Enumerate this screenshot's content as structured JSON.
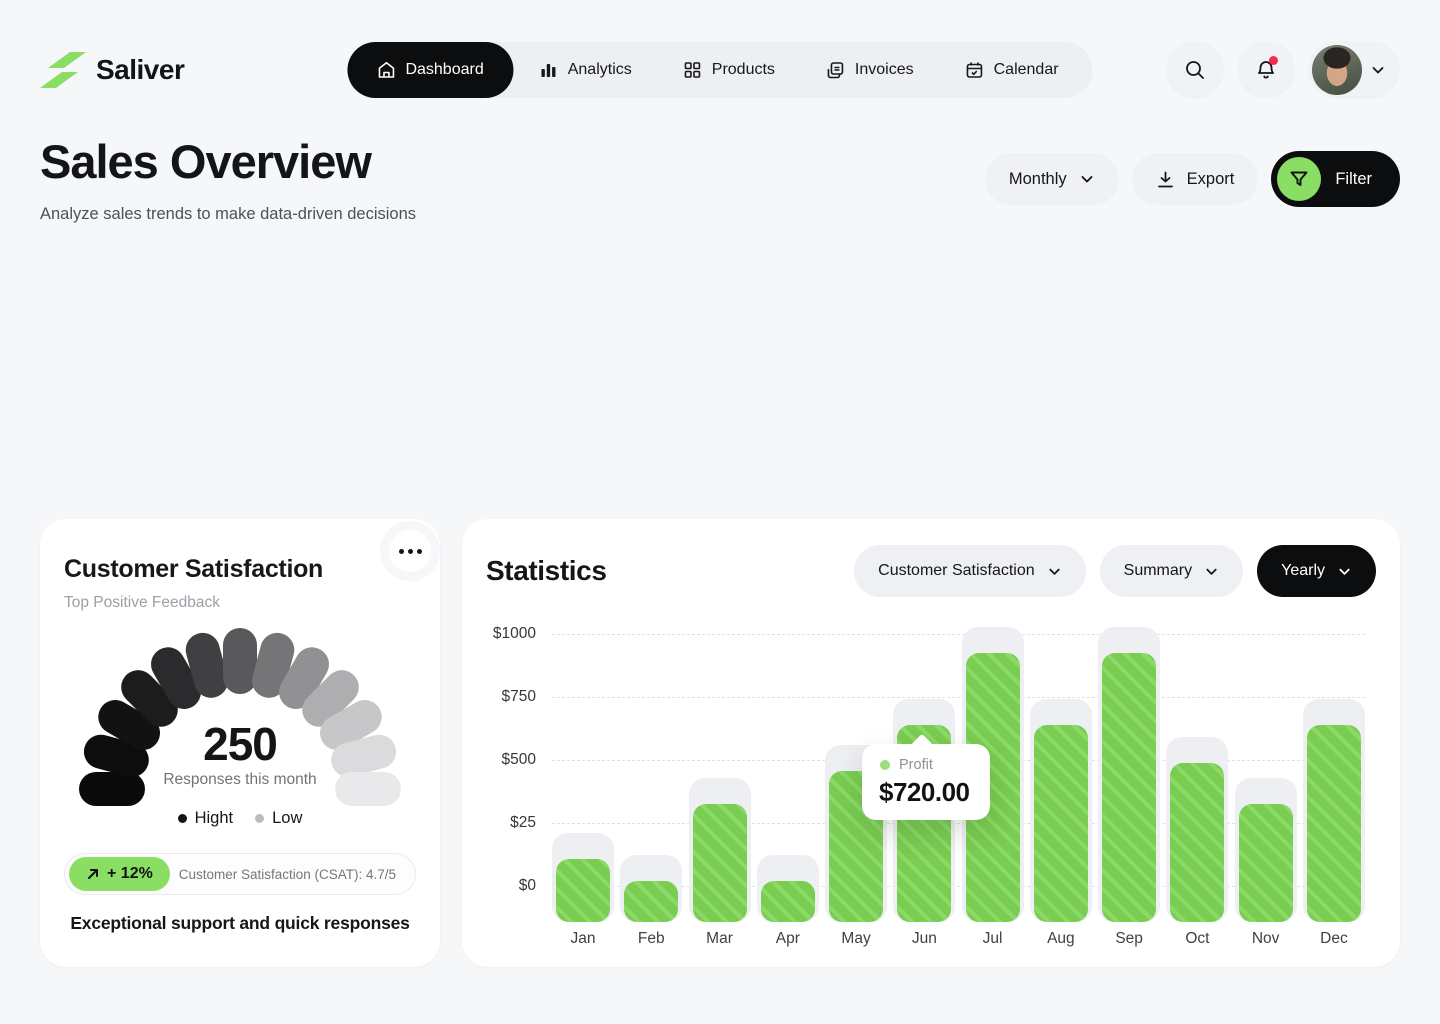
{
  "brand": {
    "name": "Saliver",
    "accent_color": "#8ade64"
  },
  "nav": {
    "items": [
      {
        "label": "Dashboard",
        "icon": "home-icon",
        "active": true
      },
      {
        "label": "Analytics",
        "icon": "bar-chart-icon",
        "active": false
      },
      {
        "label": "Products",
        "icon": "grid-icon",
        "active": false
      },
      {
        "label": "Invoices",
        "icon": "invoice-icon",
        "active": false
      },
      {
        "label": "Calendar",
        "icon": "calendar-icon",
        "active": false
      }
    ]
  },
  "topbar_actions": {
    "search_icon": "search-icon",
    "notifications_icon": "bell-icon",
    "notifications_unread": true,
    "profile_chevron": "chevron-down-icon"
  },
  "header": {
    "title": "Sales Overview",
    "subtitle": "Analyze sales trends to make data-driven decisions",
    "period_selector": "Monthly",
    "export_label": "Export",
    "filter_label": "Filter"
  },
  "satisfaction_card": {
    "title": "Customer Satisfaction",
    "subtitle": "Top Positive Feedback",
    "value": "250",
    "value_caption": "Responses this month",
    "legend": [
      {
        "label": "Hight",
        "color": "#141519"
      },
      {
        "label": "Low",
        "color": "#b7bfc4"
      }
    ],
    "change_badge": "+ 12%",
    "csat_label": "Customer Satisfaction (CSAT): 4.7/5",
    "footer": "Exceptional support and quick responses"
  },
  "statistics_card": {
    "title": "Statistics",
    "filters": [
      {
        "label": "Customer Satisfaction"
      },
      {
        "label": "Summary"
      },
      {
        "label": "Yearly",
        "dark": true
      }
    ],
    "tooltip": {
      "series": "Profit",
      "value_display": "$720.00"
    }
  },
  "chart_data": {
    "type": "bar",
    "title": "Statistics",
    "categories": [
      "Jan",
      "Feb",
      "Mar",
      "Apr",
      "May",
      "Jun",
      "Jul",
      "Aug",
      "Sep",
      "Oct",
      "Nov",
      "Dec"
    ],
    "series": [
      {
        "name": "Profit",
        "values": [
          230,
          150,
          430,
          150,
          550,
          720,
          980,
          720,
          980,
          580,
          430,
          720
        ]
      }
    ],
    "y_ticks": [
      "$1000",
      "$750",
      "$500",
      "$25",
      "$0"
    ],
    "ylim": [
      0,
      1000
    ],
    "xlabel": "",
    "ylabel": "",
    "grid": "dashed-horizontal",
    "legend_position": "tooltip-only",
    "bar_color": "#79cd51",
    "track_color": "#edeff2",
    "tooltip": {
      "category": "Jun",
      "series": "Profit",
      "value": 720,
      "display": "$720.00"
    }
  }
}
